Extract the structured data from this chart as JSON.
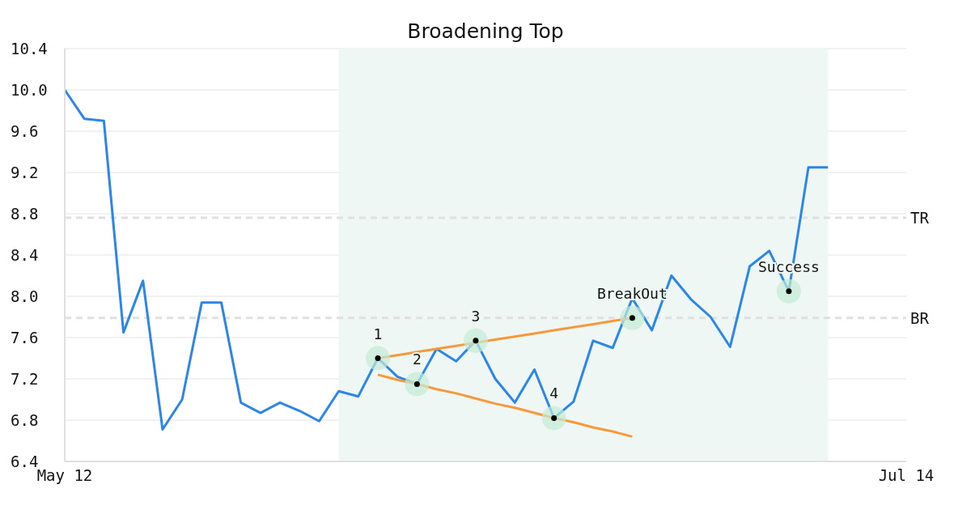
{
  "chart_data": {
    "type": "line",
    "title": "Broadening Top",
    "categories": [
      "May 12",
      null,
      null,
      null,
      null,
      null,
      null,
      null,
      null,
      null,
      null,
      null,
      null,
      null,
      null,
      null,
      null,
      null,
      null,
      null,
      null,
      null,
      null,
      null,
      null,
      null,
      null,
      null,
      null,
      null,
      null,
      null,
      null,
      null,
      null,
      null,
      null,
      null,
      null,
      null,
      null,
      null,
      null,
      "Jul 14"
    ],
    "ylim": [
      6.4,
      10.4
    ],
    "yticks": [
      {
        "value": 6.4,
        "label": "6.4"
      },
      {
        "value": 6.8,
        "label": "6.8"
      },
      {
        "value": 7.2,
        "label": "7.2"
      },
      {
        "value": 7.6,
        "label": "7.6"
      },
      {
        "value": 8.0,
        "label": "8.0"
      },
      {
        "value": 8.4,
        "label": "8.4"
      },
      {
        "value": 8.8,
        "label": "8.8"
      },
      {
        "value": 9.2,
        "label": "9.2"
      },
      {
        "value": 9.6,
        "label": "9.6"
      },
      {
        "value": 10.0,
        "label": "10.0"
      },
      {
        "value": 10.4,
        "label": "10.4"
      }
    ],
    "grid": "y",
    "legend": false,
    "series": [
      {
        "color": "#2b86e8",
        "values": [
          10.0,
          9.72,
          9.7,
          7.65,
          8.15,
          6.71,
          7.0,
          7.94,
          7.94,
          6.97,
          6.87,
          6.97,
          6.89,
          6.79,
          7.08,
          7.03,
          7.4,
          7.22,
          7.15,
          7.49,
          7.37,
          7.57,
          7.2,
          6.97,
          7.29,
          6.82,
          6.98,
          7.57,
          7.5,
          7.98,
          7.67,
          8.2,
          7.97,
          7.8,
          7.51,
          8.29,
          8.44,
          8.05,
          9.25,
          9.25,
          null,
          null,
          null,
          null
        ]
      },
      {
        "color": "#f7993a",
        "values": [
          null,
          null,
          null,
          null,
          null,
          null,
          null,
          null,
          null,
          null,
          null,
          null,
          null,
          null,
          null,
          null,
          7.4,
          7.43,
          7.46,
          7.49,
          7.52,
          7.55,
          7.58,
          7.61,
          7.64,
          7.67,
          7.7,
          7.73,
          7.76,
          7.79,
          null,
          null,
          null,
          null,
          null,
          null,
          null,
          null,
          null,
          null,
          null,
          null,
          null,
          null
        ]
      },
      {
        "color": "#f7993a",
        "values": [
          null,
          null,
          null,
          null,
          null,
          null,
          null,
          null,
          null,
          null,
          null,
          null,
          null,
          null,
          null,
          null,
          7.24,
          7.19,
          7.15,
          7.1,
          7.06,
          7.01,
          6.96,
          6.92,
          6.87,
          6.82,
          6.78,
          6.73,
          6.69,
          6.64,
          null,
          null,
          null,
          null,
          null,
          null,
          null,
          null,
          null,
          null,
          null,
          null,
          null,
          null
        ]
      },
      {
        "type": "scatter",
        "color": "#000000",
        "values": [
          null,
          null,
          null,
          null,
          null,
          null,
          null,
          null,
          null,
          null,
          null,
          null,
          null,
          null,
          null,
          null,
          7.4,
          null,
          7.15,
          null,
          null,
          7.57,
          null,
          null,
          null,
          6.82,
          null,
          null,
          null,
          7.79,
          null,
          null,
          null,
          null,
          null,
          null,
          null,
          8.05,
          null,
          null,
          null,
          null,
          null,
          null
        ]
      }
    ],
    "ref_lines": [
      {
        "axis": "y",
        "value": 8.76,
        "label": "TR",
        "color": "#e0e0e0",
        "line_style": "dashed"
      },
      {
        "axis": "y",
        "value": 7.79,
        "label": "BR",
        "color": "#e0e0e0",
        "line_style": "dashed"
      }
    ],
    "annotations": [
      "1",
      "2",
      "3",
      "4",
      "BreakOut",
      "Success"
    ]
  }
}
